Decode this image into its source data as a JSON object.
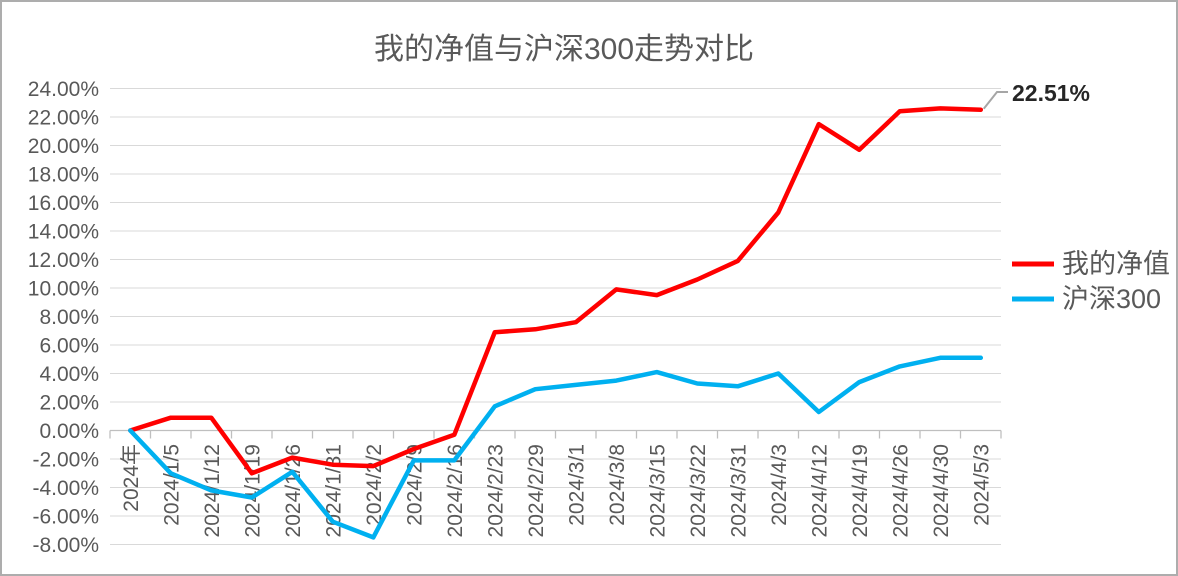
{
  "window": {
    "background": "#FFFFFF",
    "border_color": "#ADADAD"
  },
  "chart_data": {
    "type": "line",
    "title": "我的净值与沪深300走势对比",
    "categories": [
      "2024年",
      "2024/1/5",
      "2024/1/12",
      "2024/1/19",
      "2024/1/26",
      "2024/1/31",
      "2024/2/2",
      "2024/2/9",
      "2024/2/16",
      "2024/2/23",
      "2024/2/29",
      "2024/3/1",
      "2024/3/8",
      "2024/3/15",
      "2024/3/22",
      "2024/3/31",
      "2024/4/3",
      "2024/4/12",
      "2024/4/19",
      "2024/4/26",
      "2024/4/30",
      "2024/5/3"
    ],
    "series": [
      {
        "name": "我的净值",
        "color": "#FF0000",
        "values": [
          0.0,
          0.9,
          0.9,
          -3.0,
          -1.9,
          -2.4,
          -2.5,
          -1.3,
          -0.3,
          6.9,
          7.1,
          7.6,
          9.9,
          9.5,
          10.6,
          11.9,
          15.3,
          21.5,
          19.7,
          22.4,
          22.6,
          22.51
        ]
      },
      {
        "name": "沪深300",
        "color": "#00B0F0",
        "values": [
          0.0,
          -3.0,
          -4.2,
          -4.7,
          -2.9,
          -6.4,
          -7.5,
          -2.1,
          -2.1,
          1.7,
          2.9,
          3.2,
          3.5,
          4.1,
          3.3,
          3.1,
          4.0,
          1.3,
          3.4,
          4.5,
          5.1,
          5.1
        ]
      }
    ],
    "ylim": [
      -8,
      24
    ],
    "y_step": 2,
    "y_tick_labels": [
      "24.00%",
      "22.00%",
      "20.00%",
      "18.00%",
      "16.00%",
      "14.00%",
      "12.00%",
      "10.00%",
      "8.00%",
      "6.00%",
      "4.00%",
      "2.00%",
      "0.00%",
      "-2.00%",
      "-4.00%",
      "-6.00%",
      "-8.00%"
    ],
    "grid": true,
    "legend_position": "right",
    "annotation": {
      "text": "22.51%",
      "series": "我的净值",
      "at_category": "2024/5/3"
    },
    "colors": {
      "grid": "#D9D9D9",
      "axis": "#BFBFBF",
      "tick_text": "#595959",
      "title_text": "#595959",
      "legend_text": "#595959",
      "annotation_text": "#262626",
      "leader_line": "#A6A6A6"
    }
  }
}
